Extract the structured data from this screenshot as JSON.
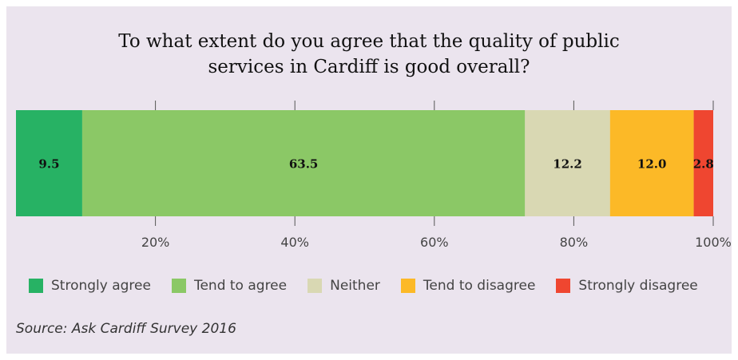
{
  "chart_data": {
    "type": "bar",
    "orientation": "horizontal-stacked",
    "title": "To what extent do you agree that the quality of public services in Cardiff is good overall?",
    "title_lines": [
      "To what extent do you agree that the quality of public",
      "services in Cardiff is good overall?"
    ],
    "series": [
      {
        "name": "Strongly agree",
        "value": 9.5,
        "label": "9.5",
        "color": "#27b264"
      },
      {
        "name": "Tend to agree",
        "value": 63.5,
        "label": "63.5",
        "color": "#8bc866"
      },
      {
        "name": "Neither",
        "value": 12.2,
        "label": "12.2",
        "color": "#d9d8b3"
      },
      {
        "name": "Tend to disagree",
        "value": 12.0,
        "label": "12.0",
        "color": "#fcb927"
      },
      {
        "name": "Strongly disagree",
        "value": 2.8,
        "label": "2.8",
        "color": "#ef4630"
      }
    ],
    "xlim": [
      0,
      100
    ],
    "ticks": [
      20,
      40,
      60,
      80,
      100
    ],
    "tick_labels": [
      "20%",
      "40%",
      "60%",
      "80%",
      "100%"
    ],
    "grid": false,
    "legend_position": "bottom"
  },
  "source": "Source: Ask Cardiff Survey 2016"
}
